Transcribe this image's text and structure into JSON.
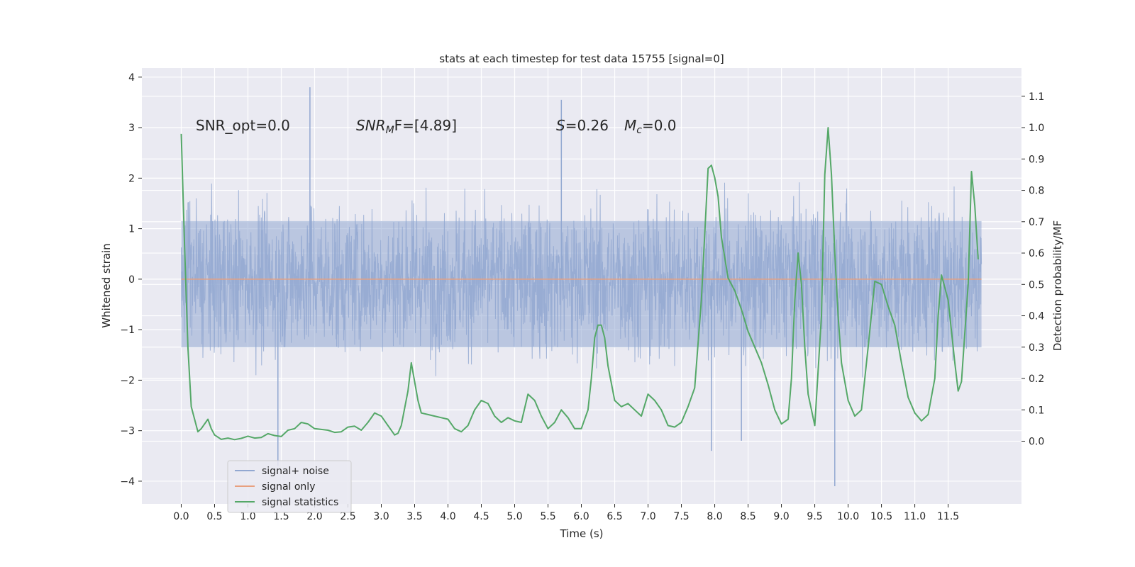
{
  "chart_data": {
    "type": "line",
    "title": "stats at each timestep for test data 15755 [signal=0]",
    "xlabel": "Time (s)",
    "ylabel": "Whitened strain",
    "y2label": "Detection probability/MF",
    "xlim": [
      -0.59,
      12.6
    ],
    "ylim": [
      -4.45,
      4.18
    ],
    "y2lim": [
      -0.2,
      1.19
    ],
    "grid": true,
    "xticks": [
      "0.0",
      "0.5",
      "1.0",
      "1.5",
      "2.0",
      "2.5",
      "3.0",
      "3.5",
      "4.0",
      "4.5",
      "5.0",
      "5.5",
      "6.0",
      "6.5",
      "7.0",
      "7.5",
      "8.0",
      "8.5",
      "9.0",
      "9.5",
      "10.0",
      "10.5",
      "11.0",
      "11.5"
    ],
    "yticks": [
      "4",
      "3",
      "2",
      "1",
      "0",
      "−1",
      "−2",
      "−3",
      "−4"
    ],
    "y2ticks": [
      "1.1",
      "1.0",
      "0.9",
      "0.8",
      "0.7",
      "0.6",
      "0.5",
      "0.4",
      "0.3",
      "0.2",
      "0.1",
      "0.0"
    ],
    "legend": {
      "position": "lower-left",
      "entries": [
        "signal+ noise",
        "signal only",
        "signal statistics"
      ]
    },
    "annotations": {
      "snr_opt": "SNR_opt=0.0",
      "snr_mf_main": "SNR",
      "snr_mf_sub": "M",
      "snr_mf_rest": "F=[4.89]",
      "s_italic": "S",
      "s_rest": "=0.26",
      "mc_main": "M",
      "mc_sub": "c",
      "mc_rest": "=0.0"
    },
    "series": [
      {
        "name": "signal+ noise",
        "color": "#92a8d1",
        "t_range": [
          0.0,
          12.0
        ],
        "envelope_typical": [
          -2.2,
          2.3
        ],
        "extremes": [
          {
            "t": 1.45,
            "y": -3.7
          },
          {
            "t": 1.93,
            "y": 3.8
          },
          {
            "t": 5.7,
            "y": 3.55
          },
          {
            "t": 9.8,
            "y": -4.1
          },
          {
            "t": 7.95,
            "y": -3.4
          },
          {
            "t": 8.4,
            "y": -3.2
          }
        ]
      },
      {
        "name": "signal only",
        "color": "#e8a07f",
        "x": [
          0.0,
          12.0
        ],
        "y": [
          0.0,
          0.0
        ]
      },
      {
        "name": "signal statistics",
        "color": "#55a868",
        "axis": "right",
        "x": [
          0.0,
          0.05,
          0.1,
          0.15,
          0.2,
          0.25,
          0.3,
          0.4,
          0.45,
          0.5,
          0.6,
          0.7,
          0.8,
          0.9,
          1.0,
          1.1,
          1.2,
          1.3,
          1.4,
          1.5,
          1.6,
          1.7,
          1.8,
          1.9,
          2.0,
          2.2,
          2.3,
          2.4,
          2.5,
          2.6,
          2.7,
          2.8,
          2.9,
          3.0,
          3.1,
          3.2,
          3.25,
          3.3,
          3.4,
          3.45,
          3.5,
          3.55,
          3.6,
          3.7,
          3.8,
          3.9,
          4.0,
          4.1,
          4.2,
          4.3,
          4.4,
          4.5,
          4.6,
          4.7,
          4.8,
          4.9,
          5.0,
          5.1,
          5.2,
          5.3,
          5.4,
          5.5,
          5.6,
          5.7,
          5.8,
          5.9,
          6.0,
          6.1,
          6.15,
          6.2,
          6.25,
          6.3,
          6.35,
          6.4,
          6.5,
          6.6,
          6.7,
          6.8,
          6.9,
          7.0,
          7.1,
          7.2,
          7.3,
          7.4,
          7.5,
          7.6,
          7.7,
          7.8,
          7.9,
          7.95,
          8.0,
          8.05,
          8.1,
          8.2,
          8.3,
          8.4,
          8.5,
          8.6,
          8.7,
          8.8,
          8.9,
          9.0,
          9.1,
          9.15,
          9.2,
          9.25,
          9.3,
          9.35,
          9.4,
          9.5,
          9.6,
          9.65,
          9.7,
          9.75,
          9.8,
          9.85,
          9.9,
          10.0,
          10.1,
          10.2,
          10.3,
          10.4,
          10.5,
          10.6,
          10.7,
          10.8,
          10.9,
          11.0,
          11.1,
          11.2,
          11.3,
          11.35,
          11.4,
          11.5,
          11.6,
          11.65,
          11.7,
          11.8,
          11.85,
          11.9,
          11.95
        ],
        "y": [
          0.98,
          0.62,
          0.3,
          0.11,
          0.07,
          0.03,
          0.04,
          0.07,
          0.04,
          0.02,
          0.006,
          0.01,
          0.005,
          0.009,
          0.016,
          0.01,
          0.012,
          0.024,
          0.018,
          0.015,
          0.035,
          0.04,
          0.06,
          0.055,
          0.04,
          0.035,
          0.028,
          0.03,
          0.045,
          0.048,
          0.035,
          0.06,
          0.09,
          0.08,
          0.05,
          0.02,
          0.025,
          0.05,
          0.16,
          0.25,
          0.19,
          0.13,
          0.09,
          0.085,
          0.08,
          0.075,
          0.07,
          0.04,
          0.03,
          0.05,
          0.1,
          0.13,
          0.12,
          0.08,
          0.06,
          0.075,
          0.065,
          0.06,
          0.15,
          0.13,
          0.08,
          0.04,
          0.06,
          0.1,
          0.075,
          0.04,
          0.04,
          0.1,
          0.2,
          0.33,
          0.37,
          0.37,
          0.33,
          0.24,
          0.13,
          0.11,
          0.12,
          0.1,
          0.08,
          0.15,
          0.13,
          0.1,
          0.05,
          0.045,
          0.06,
          0.11,
          0.17,
          0.45,
          0.87,
          0.88,
          0.84,
          0.78,
          0.65,
          0.52,
          0.48,
          0.42,
          0.35,
          0.3,
          0.25,
          0.18,
          0.1,
          0.055,
          0.07,
          0.2,
          0.45,
          0.6,
          0.5,
          0.3,
          0.15,
          0.05,
          0.4,
          0.85,
          1.0,
          0.85,
          0.6,
          0.4,
          0.25,
          0.13,
          0.08,
          0.1,
          0.3,
          0.51,
          0.5,
          0.43,
          0.37,
          0.25,
          0.14,
          0.09,
          0.065,
          0.085,
          0.2,
          0.4,
          0.53,
          0.45,
          0.25,
          0.16,
          0.19,
          0.5,
          0.86,
          0.75,
          0.58
        ]
      }
    ]
  }
}
